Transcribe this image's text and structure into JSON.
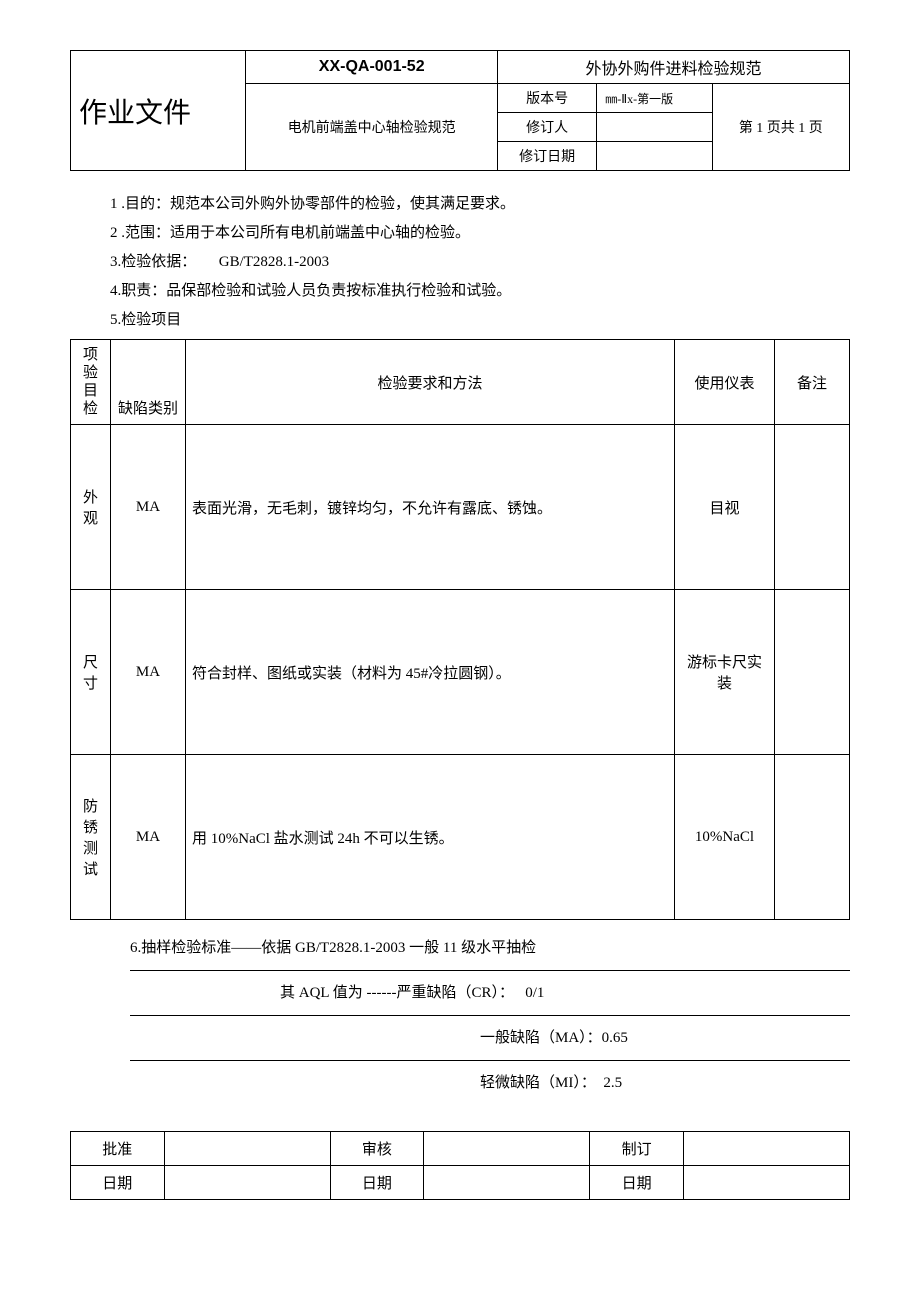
{
  "header": {
    "doc_type": "作业文件",
    "doc_code": "XX-QA-001-52",
    "doc_name": "外协外购件进料检验规范",
    "subtitle": "电机前端盖中心轴检验规范",
    "version_label": "版本号",
    "version_value": "㎜-Ⅱx-第一版",
    "reviser_label": "修订人",
    "reviser_value": "",
    "revise_date_label": "修订日期",
    "revise_date_value": "",
    "page_info": "第 1 页共 1 页"
  },
  "sections": {
    "s1": "1 .目的：规范本公司外购外协零部件的检验，使其满足要求。",
    "s2": "2 .范围：适用于本公司所有电机前端盖中心轴的检验。",
    "s3": "3.检验依据：　　GB/T2828.1-2003",
    "s4": "4.职责：品保部检验和试验人员负责按标准执行检验和试验。",
    "s5": "5.检验项目"
  },
  "table": {
    "headers": {
      "item": "项验\n目\n检",
      "defect": "缺陷类别",
      "method": "检验要求和方法",
      "instrument": "使用仪表",
      "note": "备注"
    },
    "rows": [
      {
        "item": "外观",
        "defect": "MA",
        "method": "表面光滑，无毛刺，镀锌均匀，不允许有露底、锈蚀。",
        "instrument": "目视",
        "note": ""
      },
      {
        "item": "尺寸",
        "defect": "MA",
        "method": "符合封样、图纸或实装（材料为 45#冷拉圆钢）。",
        "instrument": "游标卡尺实装",
        "note": ""
      },
      {
        "item": "防锈测试",
        "defect": "MA",
        "method": "用 10%NaCl 盐水测试 24h 不可以生锈。",
        "instrument": "10%NaCl",
        "note": ""
      }
    ]
  },
  "sampling": {
    "s6": "6.抽样检验标准——依据 GB/T2828.1-2003 一般 11 级水平抽检",
    "aql": "其 AQL 值为 ------严重缺陷（CR）：　 0/1",
    "ma": "一般缺陷（MA）：0.65",
    "mi": "轻微缺陷（MI）：　2.5"
  },
  "signature": {
    "approve_label": "批准",
    "approve_value": "",
    "review_label": "审核",
    "review_value": "",
    "draft_label": "制订",
    "draft_value": "",
    "date_label": "日期",
    "date1": "",
    "date2": "",
    "date3": ""
  }
}
